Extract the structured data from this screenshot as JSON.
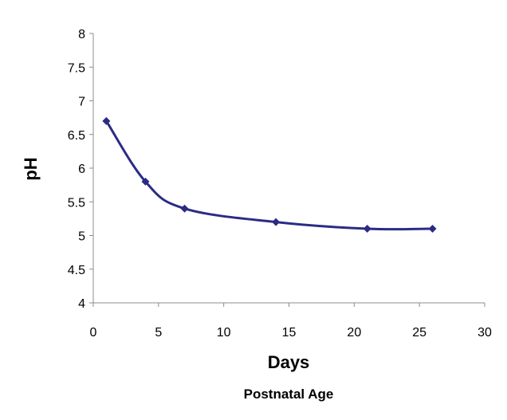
{
  "chart_data": {
    "type": "line",
    "title": "",
    "xlabel": "Days",
    "x_sublabel": "Postnatal Age",
    "ylabel": "pH",
    "xlim": [
      0,
      30
    ],
    "ylim": [
      4,
      8
    ],
    "xticks": [
      0,
      5,
      10,
      15,
      20,
      25,
      30
    ],
    "yticks": [
      4,
      4.5,
      5,
      5.5,
      6,
      6.5,
      7,
      7.5,
      8
    ],
    "x": [
      1,
      4,
      7,
      14,
      21,
      26
    ],
    "series": [
      {
        "values": [
          6.7,
          5.8,
          5.4,
          5.2,
          5.1,
          5.1
        ],
        "color": "#2b2b86",
        "marker": "diamond",
        "smoothed": true
      }
    ],
    "grid": false,
    "legend": "none"
  }
}
